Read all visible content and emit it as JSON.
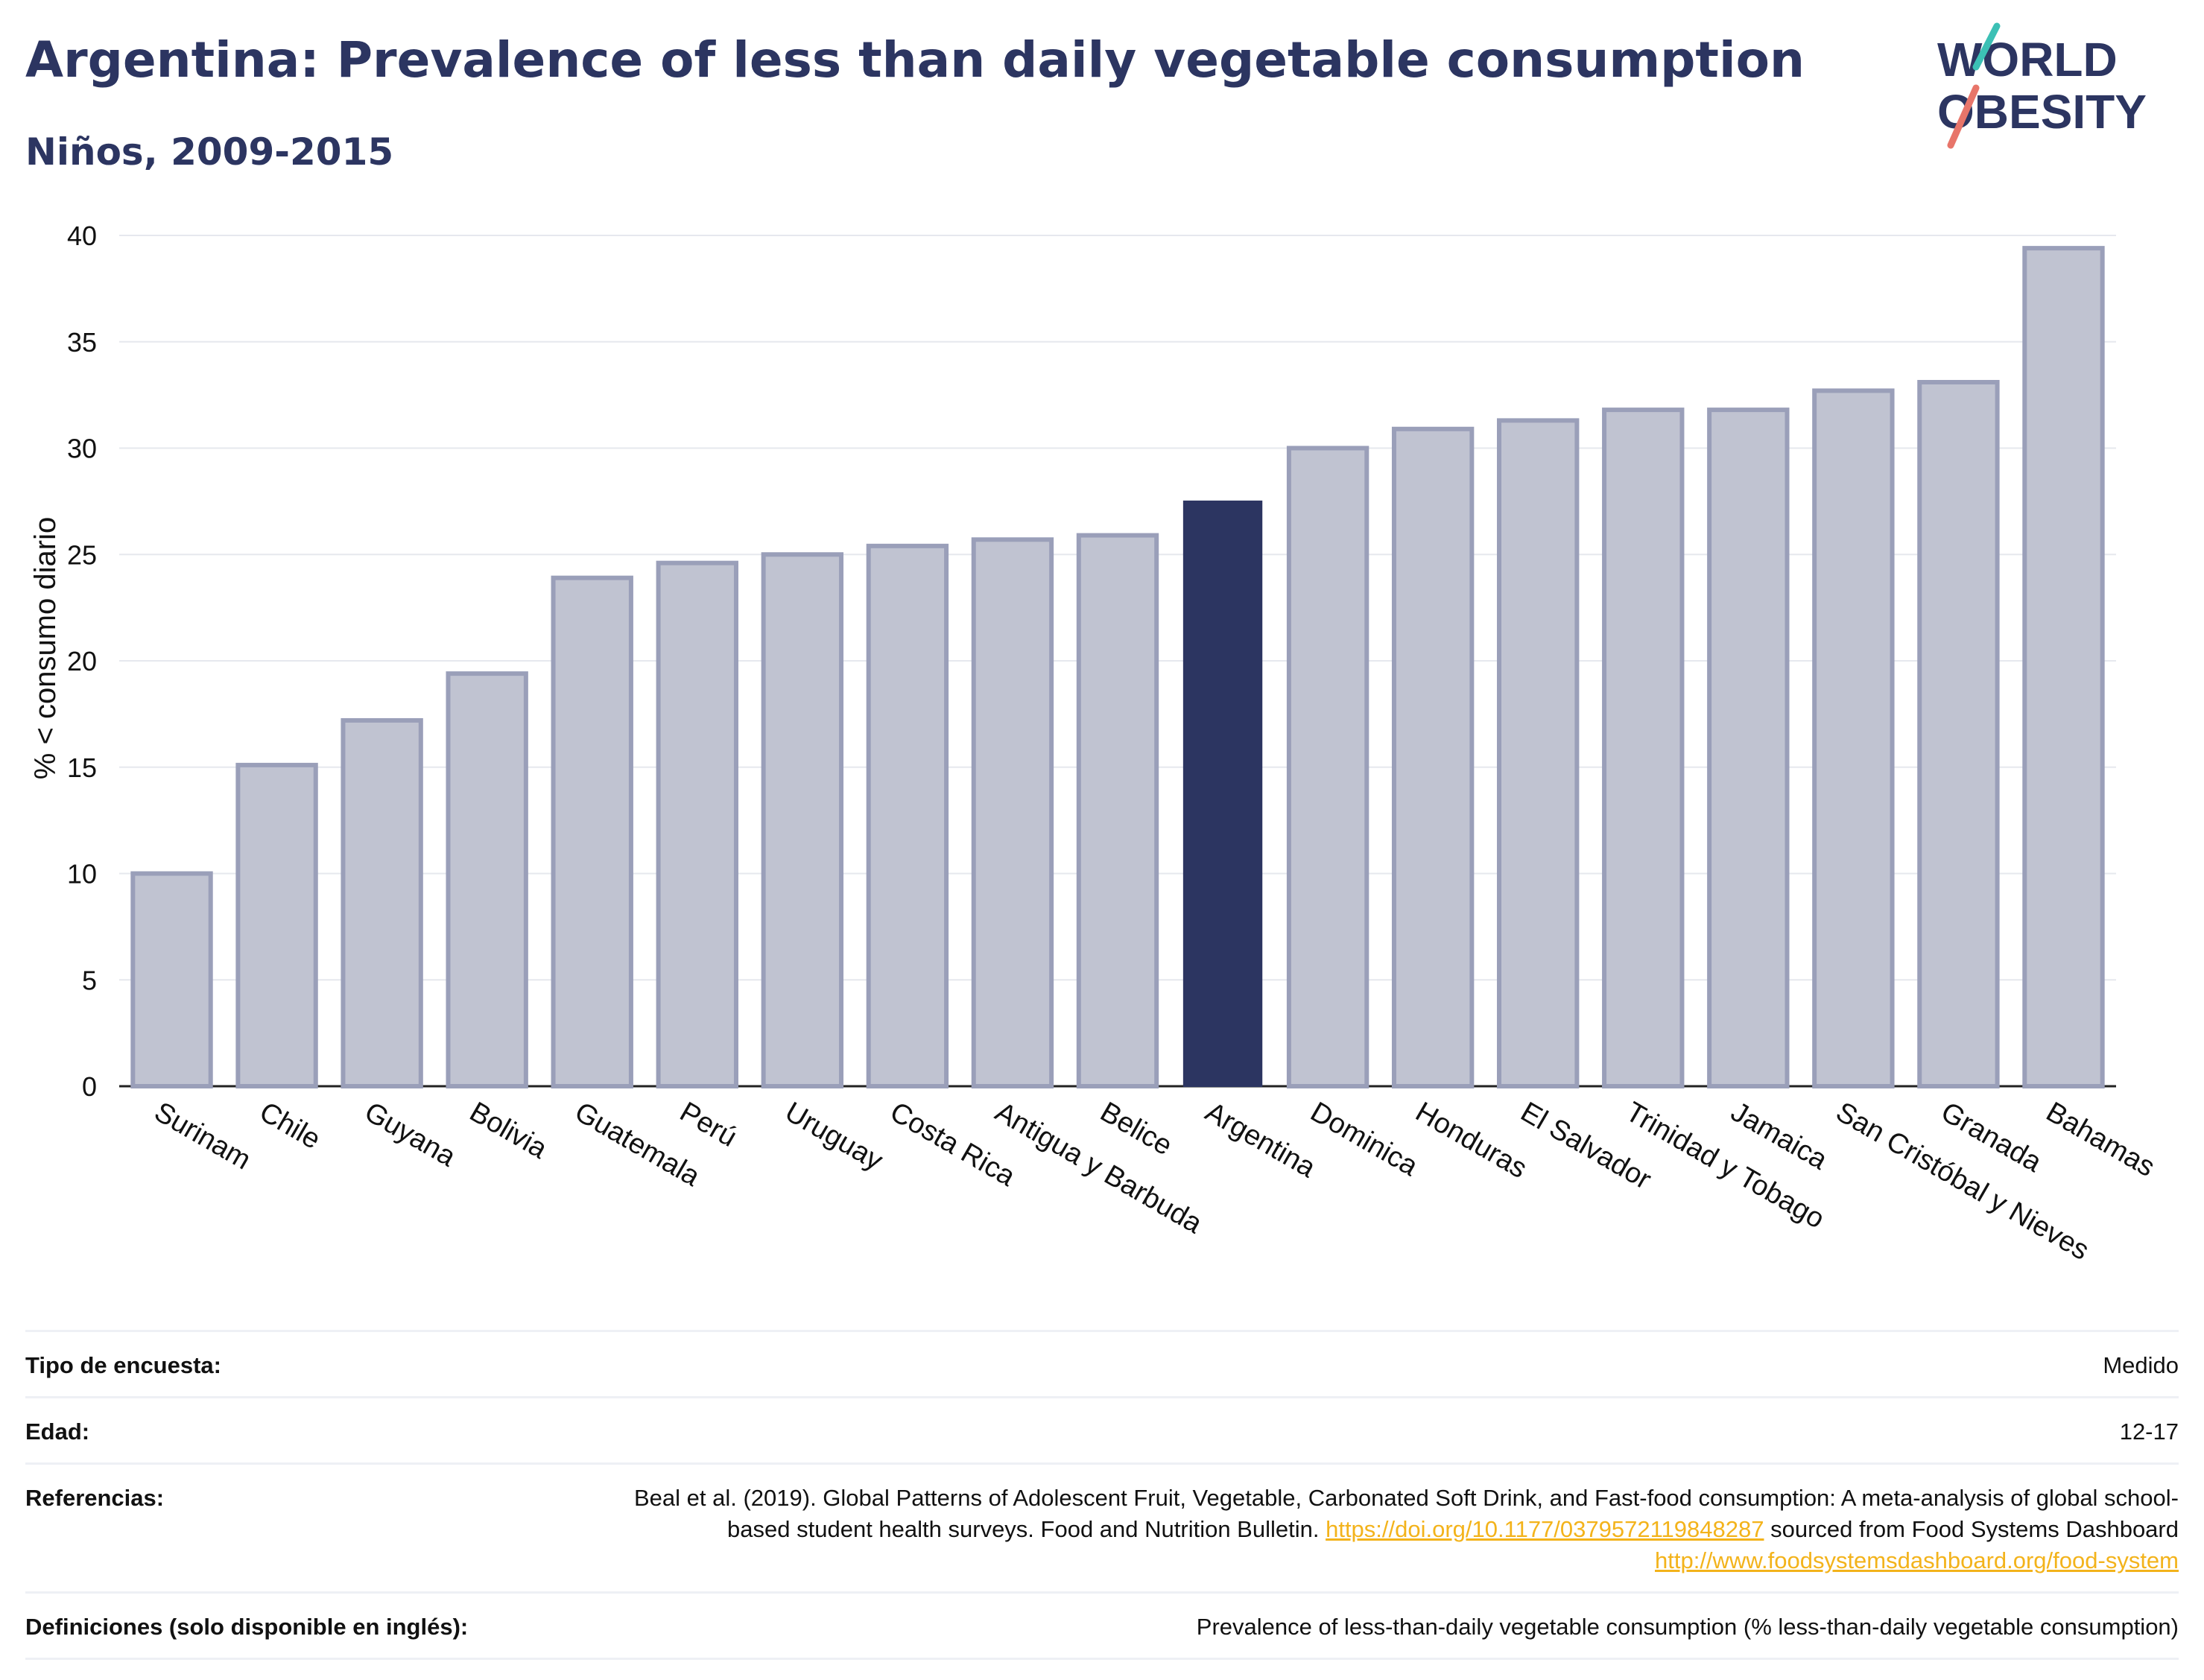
{
  "header": {
    "title": "Argentina: Prevalence of less than daily vegetable consumption",
    "subtitle": "Niños, 2009-2015"
  },
  "logo": {
    "line1": "WORLD",
    "line2": "OBESITY"
  },
  "colors": {
    "title": "#2c3561",
    "bar_default": "#c0c3d1",
    "bar_default_stroke": "#9a9fb9",
    "bar_highlight": "#2c3561",
    "grid": "#e6e8ee",
    "link": "#f3b31b",
    "logo_slash_top": "#3cc0b5",
    "logo_slash_bottom": "#e8756a"
  },
  "chart_data": {
    "type": "bar",
    "title": "Argentina: Prevalence of less than daily vegetable consumption",
    "subtitle": "Niños, 2009-2015",
    "ylabel": "% < consumo diario",
    "xlabel": "",
    "ylim": [
      0,
      40
    ],
    "yticks": [
      0,
      5,
      10,
      15,
      20,
      25,
      30,
      35,
      40
    ],
    "grid": true,
    "highlight": "Argentina",
    "categories": [
      "Surinam",
      "Chile",
      "Guyana",
      "Bolivia",
      "Guatemala",
      "Perú",
      "Uruguay",
      "Costa Rica",
      "Antigua y Barbuda",
      "Belice",
      "Argentina",
      "Dominica",
      "Honduras",
      "El Salvador",
      "Trinidad y Tobago",
      "Jamaica",
      "San Cristóbal y Nieves",
      "Granada",
      "Bahamas"
    ],
    "values": [
      10.0,
      15.1,
      17.2,
      19.4,
      23.9,
      24.6,
      25.0,
      25.4,
      25.7,
      25.9,
      27.5,
      30.0,
      30.9,
      31.3,
      31.8,
      31.8,
      32.7,
      33.1,
      39.4
    ]
  },
  "meta": {
    "survey_label": "Tipo de encuesta:",
    "survey_value": "Medido",
    "age_label": "Edad:",
    "age_value": "12-17",
    "refs_label": "Referencias:",
    "refs_text1": "Beal et al. (2019). Global Patterns of Adolescent Fruit, Vegetable, Carbonated Soft Drink, and Fast-food consumption: A meta-analysis of global school-based student health surveys. Food and Nutrition Bulletin. ",
    "refs_link1": "https://doi.org/10.1177/0379572119848287",
    "refs_text2": " sourced from Food Systems Dashboard ",
    "refs_link2": "http://www.foodsystemsdashboard.org/food-system",
    "defs_label": "Definiciones (solo disponible en inglés):",
    "defs_value": "Prevalence of less-than-daily vegetable consumption (% less-than-daily vegetable consumption)"
  }
}
